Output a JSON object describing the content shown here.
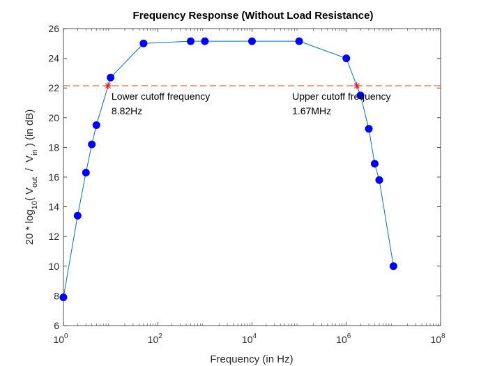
{
  "chart_data": {
    "type": "line",
    "title": "Frequency Response (Without Load Resistance)",
    "xlabel": "Frequency (in Hz)",
    "ylabel": {
      "prefix": "20 * log",
      "log_sub": "10",
      "open": "( V",
      "num_sub": "out",
      "slash": "  /  V",
      "den_sub": "in",
      "suffix": " ) (in dB)"
    },
    "x_scale": "log",
    "xlim": [
      1,
      100000000
    ],
    "ylim": [
      6,
      26
    ],
    "x_ticks": [
      {
        "base": "10",
        "exp": "0",
        "value": 1
      },
      {
        "base": "10",
        "exp": "2",
        "value": 100
      },
      {
        "base": "10",
        "exp": "4",
        "value": 10000
      },
      {
        "base": "10",
        "exp": "6",
        "value": 1000000
      },
      {
        "base": "10",
        "exp": "8",
        "value": 100000000
      }
    ],
    "y_ticks": [
      "6",
      "8",
      "10",
      "12",
      "14",
      "16",
      "18",
      "20",
      "22",
      "24",
      "26"
    ],
    "grid": false,
    "series": [
      {
        "color": "#0072BD",
        "marker_color": "#0000FF",
        "x": [
          1,
          2,
          3,
          4,
          5,
          10,
          50,
          500,
          1000,
          10000,
          100000,
          1000000,
          2000000,
          3000000,
          4000000,
          5000000,
          10000000
        ],
        "y": [
          7.9,
          13.4,
          16.3,
          18.2,
          19.5,
          22.7,
          25.0,
          25.15,
          25.15,
          25.15,
          25.15,
          24.0,
          21.5,
          19.25,
          16.9,
          15.8,
          10.0
        ]
      }
    ],
    "reference_line": {
      "y": 22.15,
      "style": "dashed",
      "color": "#D95319"
    },
    "cutoff_markers": [
      {
        "x": 8.82,
        "y": 22.15,
        "color": "#FF0000"
      },
      {
        "x": 1670000,
        "y": 22.15,
        "color": "#FF0000"
      }
    ],
    "annotations": [
      {
        "line1": "Lower cutoff frequency",
        "line2": "8.82Hz",
        "x": 8.82,
        "y": 22.15
      },
      {
        "line1": "Upper cutoff frequency",
        "line2": "1.67MHz",
        "x": 60000,
        "y": 22.15
      }
    ]
  }
}
